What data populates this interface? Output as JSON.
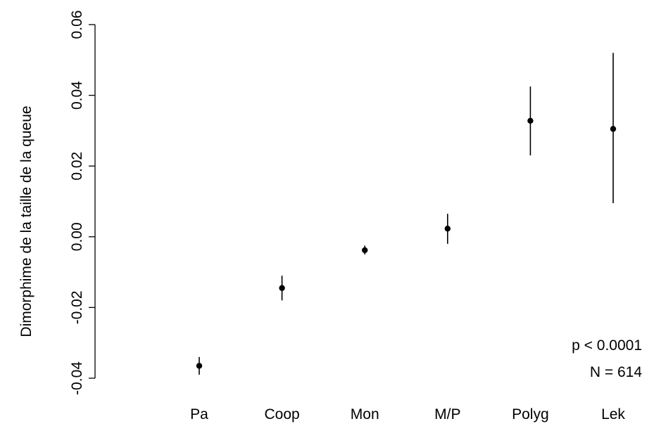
{
  "chart_data": {
    "type": "scatter",
    "title": "",
    "xlabel": "",
    "ylabel": "Dimorphime de la taille de la queue",
    "ylim": [
      -0.04,
      0.06
    ],
    "yticks": [
      -0.04,
      -0.02,
      0.0,
      0.02,
      0.04,
      0.06
    ],
    "ytick_labels": [
      "-0.04",
      "-0.02",
      "0.00",
      "0.02",
      "0.04",
      "0.06"
    ],
    "categories": [
      "Pa",
      "Coop",
      "Mon",
      "M/P",
      "Polyg",
      "Lek"
    ],
    "values": [
      -0.0365,
      -0.0145,
      -0.0038,
      0.0023,
      0.0328,
      0.0305
    ],
    "error_low": [
      -0.039,
      -0.018,
      -0.005,
      -0.002,
      0.023,
      0.0095
    ],
    "error_high": [
      -0.034,
      -0.011,
      -0.0025,
      0.0065,
      0.0425,
      0.052
    ],
    "grid": false,
    "colors": {
      "points": "#000000",
      "axis": "#000000"
    },
    "annotations": [
      "p < 0.0001",
      "N = 614"
    ]
  }
}
